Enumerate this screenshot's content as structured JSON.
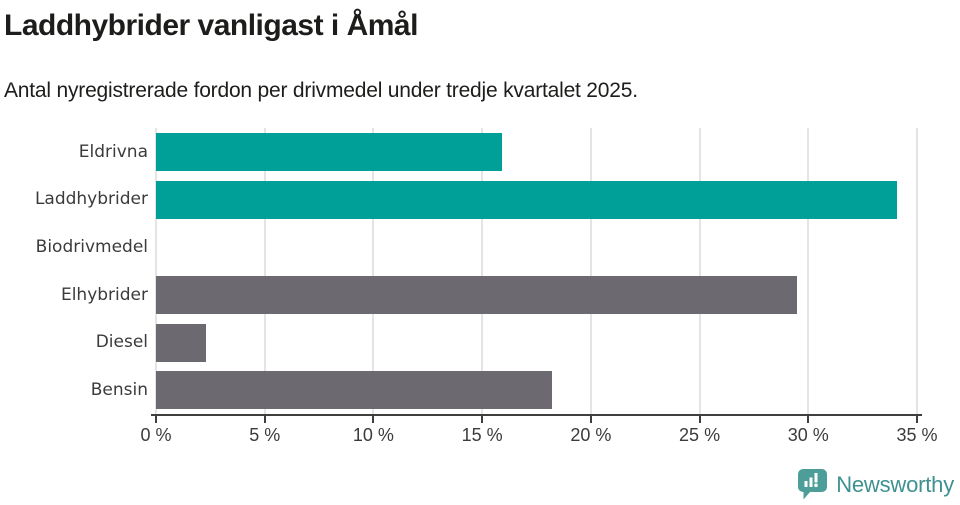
{
  "header": {
    "title": "Laddhybrider vanligast i Åmål",
    "subtitle": "Antal nyregistrerade fordon per drivmedel under tredje kvartalet 2025."
  },
  "chart_data": {
    "type": "bar",
    "orientation": "horizontal",
    "title": "Laddhybrider vanligast i Åmål",
    "subtitle": "Antal nyregistrerade fordon per drivmedel under tredje kvartalet 2025.",
    "categories": [
      "Eldrivna",
      "Laddhybrider",
      "Biodrivmedel",
      "Elhybrider",
      "Diesel",
      "Bensin"
    ],
    "values": [
      15.9,
      34.1,
      0,
      29.5,
      2.3,
      18.2
    ],
    "unit": "%",
    "xlim": [
      0,
      35
    ],
    "x_ticks": [
      0,
      5,
      10,
      15,
      20,
      25,
      30,
      35
    ],
    "x_tick_labels": [
      "0 %",
      "5 %",
      "10 %",
      "15 %",
      "20 %",
      "25 %",
      "30 %",
      "35 %"
    ],
    "bar_colors": [
      "#00a099",
      "#00a099",
      "#00a099",
      "#6c6a70",
      "#6c6a70",
      "#6c6a70"
    ],
    "grid": true,
    "legend": "none",
    "xlabel": "",
    "ylabel": ""
  },
  "colors": {
    "teal_bar": "#00a099",
    "gray_bar": "#6c6a70",
    "gridline": "#e4e4e4",
    "axis": "#3f3f3f",
    "label_text": "#3b3b3b",
    "title_text": "#1d1d1b",
    "brand_teal": "#3f9191",
    "logo_fill": "#4d9e98"
  },
  "footer": {
    "brand_label": "Newsworthy",
    "logo_icon": "bar-chart-speech-bubble-icon"
  }
}
